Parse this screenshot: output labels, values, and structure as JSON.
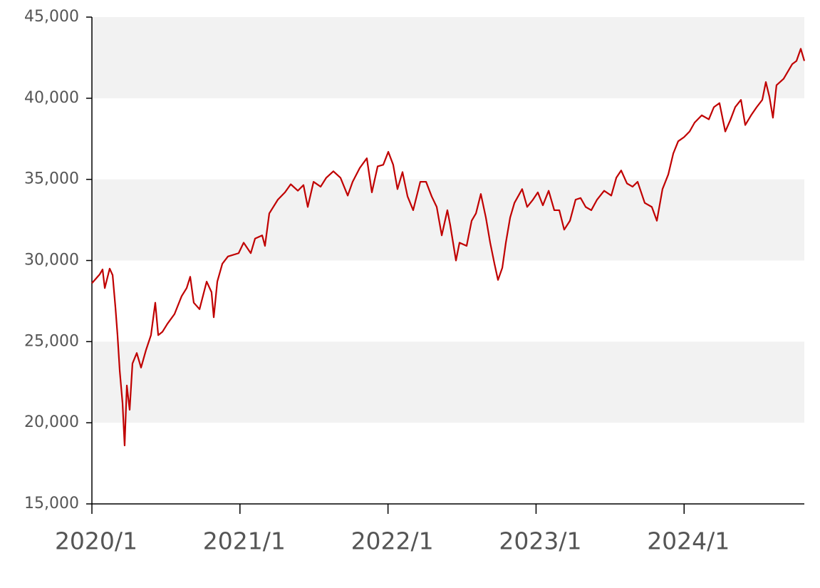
{
  "chart_data": {
    "type": "line",
    "x": [
      2020.0,
      2020.053,
      2020.072,
      2020.087,
      2020.12,
      2020.14,
      2020.159,
      2020.173,
      2020.188,
      2020.207,
      2020.221,
      2020.236,
      2020.255,
      2020.274,
      2020.303,
      2020.332,
      2020.366,
      2020.399,
      2020.428,
      2020.448,
      2020.476,
      2020.51,
      2020.558,
      2020.606,
      2020.64,
      2020.664,
      2020.688,
      2020.727,
      2020.775,
      2020.808,
      2020.823,
      2020.847,
      2020.881,
      2020.919,
      2020.991,
      2021.025,
      2021.073,
      2021.102,
      2021.15,
      2021.169,
      2021.198,
      2021.256,
      2021.304,
      2021.343,
      2021.391,
      2021.429,
      2021.458,
      2021.497,
      2021.545,
      2021.583,
      2021.631,
      2021.679,
      2021.728,
      2021.761,
      2021.809,
      2021.857,
      2021.891,
      2021.93,
      2021.968,
      2022.002,
      2022.035,
      2022.064,
      2022.098,
      2022.132,
      2022.17,
      2022.218,
      2022.257,
      2022.295,
      2022.329,
      2022.363,
      2022.401,
      2022.42,
      2022.459,
      2022.483,
      2022.531,
      2022.565,
      2022.594,
      2022.627,
      2022.661,
      2022.69,
      2022.719,
      2022.743,
      2022.772,
      2022.796,
      2022.825,
      2022.854,
      2022.906,
      2022.94,
      2022.979,
      2023.012,
      2023.046,
      2023.085,
      2023.123,
      2023.157,
      2023.19,
      2023.229,
      2023.267,
      2023.301,
      2023.335,
      2023.373,
      2023.412,
      2023.46,
      2023.508,
      2023.542,
      2023.575,
      2023.614,
      2023.652,
      2023.686,
      2023.734,
      2023.782,
      2023.816,
      2023.854,
      2023.893,
      2023.927,
      2023.96,
      2023.999,
      2024.037,
      2024.071,
      2024.119,
      2024.167,
      2024.201,
      2024.239,
      2024.278,
      2024.312,
      2024.345,
      2024.384,
      2024.413,
      2024.456,
      2024.49,
      2024.528,
      2024.552,
      2024.576,
      2024.6,
      2024.624,
      2024.672,
      2024.701,
      2024.73,
      2024.759,
      2024.788,
      2024.812
    ],
    "series": [
      {
        "color": "#c00000",
        "values": [
          28600,
          29150,
          29450,
          28300,
          29500,
          29100,
          27100,
          25400,
          23200,
          21200,
          18600,
          22300,
          20800,
          23650,
          24300,
          23400,
          24500,
          25400,
          27400,
          25400,
          25600,
          26100,
          26700,
          27800,
          28300,
          29000,
          27400,
          27000,
          28700,
          28050,
          26500,
          28700,
          29800,
          30250,
          30450,
          31100,
          30450,
          31350,
          31550,
          30900,
          32900,
          33750,
          34200,
          34700,
          34300,
          34650,
          33300,
          34850,
          34550,
          35100,
          35500,
          35100,
          34000,
          34850,
          35700,
          36300,
          34200,
          35800,
          35900,
          36700,
          35900,
          34400,
          35450,
          33950,
          33100,
          34850,
          34850,
          33950,
          33300,
          31550,
          33100,
          32200,
          30000,
          31100,
          30900,
          32450,
          32900,
          34100,
          32650,
          31100,
          29800,
          28800,
          29550,
          31100,
          32650,
          33550,
          34400,
          33300,
          33750,
          34200,
          33400,
          34300,
          33100,
          33100,
          31900,
          32450,
          33750,
          33850,
          33300,
          33100,
          33750,
          34300,
          34000,
          35100,
          35550,
          34750,
          34550,
          34850,
          33550,
          33300,
          32450,
          34400,
          35300,
          36600,
          37350,
          37600,
          37950,
          38500,
          38950,
          38700,
          39450,
          39700,
          37950,
          38650,
          39450,
          39900,
          38350,
          39000,
          39450,
          39900,
          41000,
          40100,
          38800,
          40800,
          41200,
          41650,
          42100,
          42300,
          43050,
          42300
        ]
      }
    ],
    "xlim": [
      2020,
      2024.812
    ],
    "xticks": [
      {
        "value": 2020,
        "label": "2020/1"
      },
      {
        "value": 2021,
        "label": "2021/1"
      },
      {
        "value": 2022,
        "label": "2022/1"
      },
      {
        "value": 2023,
        "label": "2023/1"
      },
      {
        "value": 2024,
        "label": "2024/1"
      }
    ],
    "ylim": [
      15000,
      45000
    ],
    "yticks": [
      {
        "value": 15000,
        "label": "15,000"
      },
      {
        "value": 20000,
        "label": "20,000"
      },
      {
        "value": 25000,
        "label": "25,000"
      },
      {
        "value": 30000,
        "label": "30,000"
      },
      {
        "value": 35000,
        "label": "35,000"
      },
      {
        "value": 40000,
        "label": "40,000"
      },
      {
        "value": 45000,
        "label": "45,000"
      }
    ],
    "grid": "bands",
    "band_color": "#f2f2f2"
  }
}
